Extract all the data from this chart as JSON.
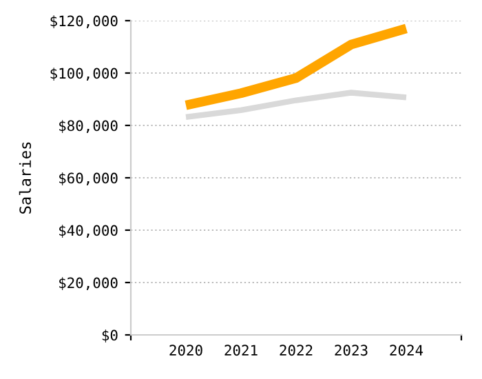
{
  "chart_data": {
    "type": "line",
    "ylabel": "Salaries",
    "categories": [
      "2020",
      "2021",
      "2022",
      "2023",
      "2024"
    ],
    "series": [
      {
        "color": "#ffa500",
        "values": [
          87700,
          92300,
          98100,
          110900,
          117000
        ]
      },
      {
        "color": "#d9d9d9",
        "values": [
          83200,
          85800,
          89600,
          92500,
          90700
        ]
      }
    ],
    "ylim": [
      0,
      120000
    ],
    "yticks": [
      {
        "value": 0,
        "label": "$0"
      },
      {
        "value": 20000,
        "label": "$20,000"
      },
      {
        "value": 40000,
        "label": "$40,000"
      },
      {
        "value": 60000,
        "label": "$60,000"
      },
      {
        "value": 80000,
        "label": "$80,000"
      },
      {
        "value": 100000,
        "label": "$100,000"
      },
      {
        "value": 120000,
        "label": "$120,000"
      }
    ],
    "grid": "y",
    "marker": "none",
    "line_style": "solid"
  }
}
